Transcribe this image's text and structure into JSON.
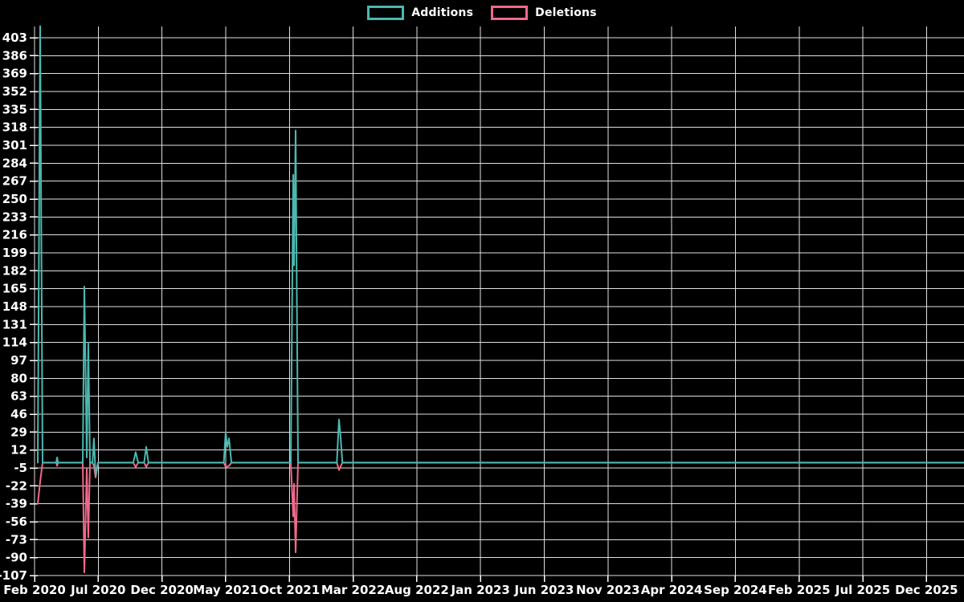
{
  "chart_data": {
    "type": "line",
    "background": "#000000",
    "grid": true,
    "legend_position": "top-center",
    "axis_text_color": "#ffffff",
    "grid_color": "#e0e0e0",
    "x_axis": {
      "unit": "months since Feb 2020",
      "ticks": [
        {
          "m": 0,
          "label": "Feb 2020"
        },
        {
          "m": 5,
          "label": "Jul 2020"
        },
        {
          "m": 10,
          "label": "Dec 2020"
        },
        {
          "m": 15,
          "label": "May 2021"
        },
        {
          "m": 20,
          "label": "Oct 2021"
        },
        {
          "m": 25,
          "label": "Mar 2022"
        },
        {
          "m": 30,
          "label": "Aug 2022"
        },
        {
          "m": 35,
          "label": "Jan 2023"
        },
        {
          "m": 40,
          "label": "Jun 2023"
        },
        {
          "m": 45,
          "label": "Nov 2023"
        },
        {
          "m": 50,
          "label": "Apr 2024"
        },
        {
          "m": 55,
          "label": "Sep 2024"
        },
        {
          "m": 60,
          "label": "Feb 2025"
        },
        {
          "m": 65,
          "label": "Jul 2025"
        },
        {
          "m": 70,
          "label": "Dec 2025"
        }
      ]
    },
    "y_axis": {
      "min": -107,
      "max": 414,
      "ticks": [
        403,
        386,
        369,
        352,
        335,
        318,
        301,
        284,
        267,
        250,
        233,
        216,
        199,
        182,
        165,
        148,
        131,
        114,
        97,
        80,
        63,
        46,
        29,
        12,
        -5,
        -22,
        -39,
        -56,
        -73,
        -90,
        -107
      ]
    },
    "series": [
      {
        "name": "Deletions",
        "color": "#f0698a",
        "points": [
          [
            0.25,
            -39
          ],
          [
            0.44,
            -18
          ],
          [
            0.63,
            0
          ],
          [
            1.7,
            0
          ],
          [
            1.77,
            -3
          ],
          [
            1.85,
            0
          ],
          [
            3.78,
            0
          ],
          [
            3.91,
            -104
          ],
          [
            4.1,
            -5
          ],
          [
            4.22,
            -71
          ],
          [
            4.35,
            0
          ],
          [
            4.55,
            0
          ],
          [
            4.66,
            -3
          ],
          [
            4.79,
            -14
          ],
          [
            4.98,
            0
          ],
          [
            7.75,
            0
          ],
          [
            7.94,
            -4
          ],
          [
            8.13,
            0
          ],
          [
            8.6,
            0
          ],
          [
            8.76,
            -4
          ],
          [
            8.94,
            0
          ],
          [
            14.85,
            0
          ],
          [
            15.0,
            -4
          ],
          [
            15.26,
            -3
          ],
          [
            15.45,
            0
          ],
          [
            20.11,
            0
          ],
          [
            20.3,
            -51
          ],
          [
            20.37,
            -20
          ],
          [
            20.49,
            -85
          ],
          [
            20.68,
            0
          ],
          [
            23.72,
            0
          ],
          [
            23.89,
            -7
          ],
          [
            24.16,
            0
          ],
          [
            72.95,
            0
          ]
        ]
      },
      {
        "name": "Additions",
        "color": "#4ab8b0",
        "points": [
          [
            0.25,
            0
          ],
          [
            0.44,
            414
          ],
          [
            0.63,
            0
          ],
          [
            1.7,
            0
          ],
          [
            1.77,
            5
          ],
          [
            1.85,
            0
          ],
          [
            3.78,
            0
          ],
          [
            3.91,
            167
          ],
          [
            4.1,
            5
          ],
          [
            4.22,
            114
          ],
          [
            4.35,
            0
          ],
          [
            4.55,
            0
          ],
          [
            4.66,
            23
          ],
          [
            4.79,
            -12
          ],
          [
            4.98,
            0
          ],
          [
            7.75,
            0
          ],
          [
            7.94,
            10
          ],
          [
            8.13,
            0
          ],
          [
            8.6,
            0
          ],
          [
            8.76,
            15
          ],
          [
            8.94,
            0
          ],
          [
            14.85,
            0
          ],
          [
            15.0,
            29
          ],
          [
            15.13,
            15
          ],
          [
            15.26,
            23
          ],
          [
            15.45,
            0
          ],
          [
            20.11,
            0
          ],
          [
            20.3,
            273
          ],
          [
            20.37,
            187
          ],
          [
            20.49,
            315
          ],
          [
            20.68,
            0
          ],
          [
            23.72,
            0
          ],
          [
            23.89,
            41
          ],
          [
            24.02,
            24
          ],
          [
            24.16,
            0
          ],
          [
            72.95,
            0
          ]
        ]
      }
    ]
  }
}
